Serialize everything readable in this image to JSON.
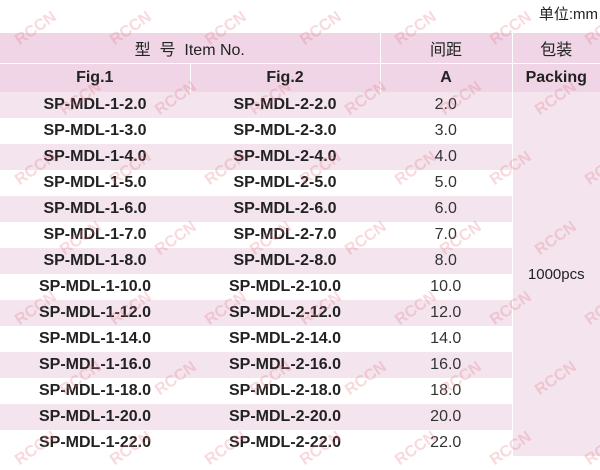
{
  "unit_label": "单位:mm",
  "watermark": "RCCN",
  "header": {
    "item_no": "型  号  Item No.",
    "pitch": "间距",
    "packing": "包装",
    "fig1": "Fig.1",
    "fig2": "Fig.2",
    "pitch_symbol": "A",
    "packing_en": "Packing"
  },
  "packing_value": "1000pcs",
  "rows": [
    {
      "fig1": "SP-MDL-1-2.0",
      "fig2": "SP-MDL-2-2.0",
      "a": "2.0"
    },
    {
      "fig1": "SP-MDL-1-3.0",
      "fig2": "SP-MDL-2-3.0",
      "a": "3.0"
    },
    {
      "fig1": "SP-MDL-1-4.0",
      "fig2": "SP-MDL-2-4.0",
      "a": "4.0"
    },
    {
      "fig1": "SP-MDL-1-5.0",
      "fig2": "SP-MDL-2-5.0",
      "a": "5.0"
    },
    {
      "fig1": "SP-MDL-1-6.0",
      "fig2": "SP-MDL-2-6.0",
      "a": "6.0"
    },
    {
      "fig1": "SP-MDL-1-7.0",
      "fig2": "SP-MDL-2-7.0",
      "a": "7.0"
    },
    {
      "fig1": "SP-MDL-1-8.0",
      "fig2": "SP-MDL-2-8.0",
      "a": "8.0"
    },
    {
      "fig1": "SP-MDL-1-10.0",
      "fig2": "SP-MDL-2-10.0",
      "a": "10.0"
    },
    {
      "fig1": "SP-MDL-1-12.0",
      "fig2": "SP-MDL-2-12.0",
      "a": "12.0"
    },
    {
      "fig1": "SP-MDL-1-14.0",
      "fig2": "SP-MDL-2-14.0",
      "a": "14.0"
    },
    {
      "fig1": "SP-MDL-1-16.0",
      "fig2": "SP-MDL-2-16.0",
      "a": "16.0"
    },
    {
      "fig1": "SP-MDL-1-18.0",
      "fig2": "SP-MDL-2-18.0",
      "a": "18.0"
    },
    {
      "fig1": "SP-MDL-1-20.0",
      "fig2": "SP-MDL-2-20.0",
      "a": "20.0"
    },
    {
      "fig1": "SP-MDL-1-22.0",
      "fig2": "SP-MDL-2-22.0",
      "a": "22.0"
    }
  ]
}
